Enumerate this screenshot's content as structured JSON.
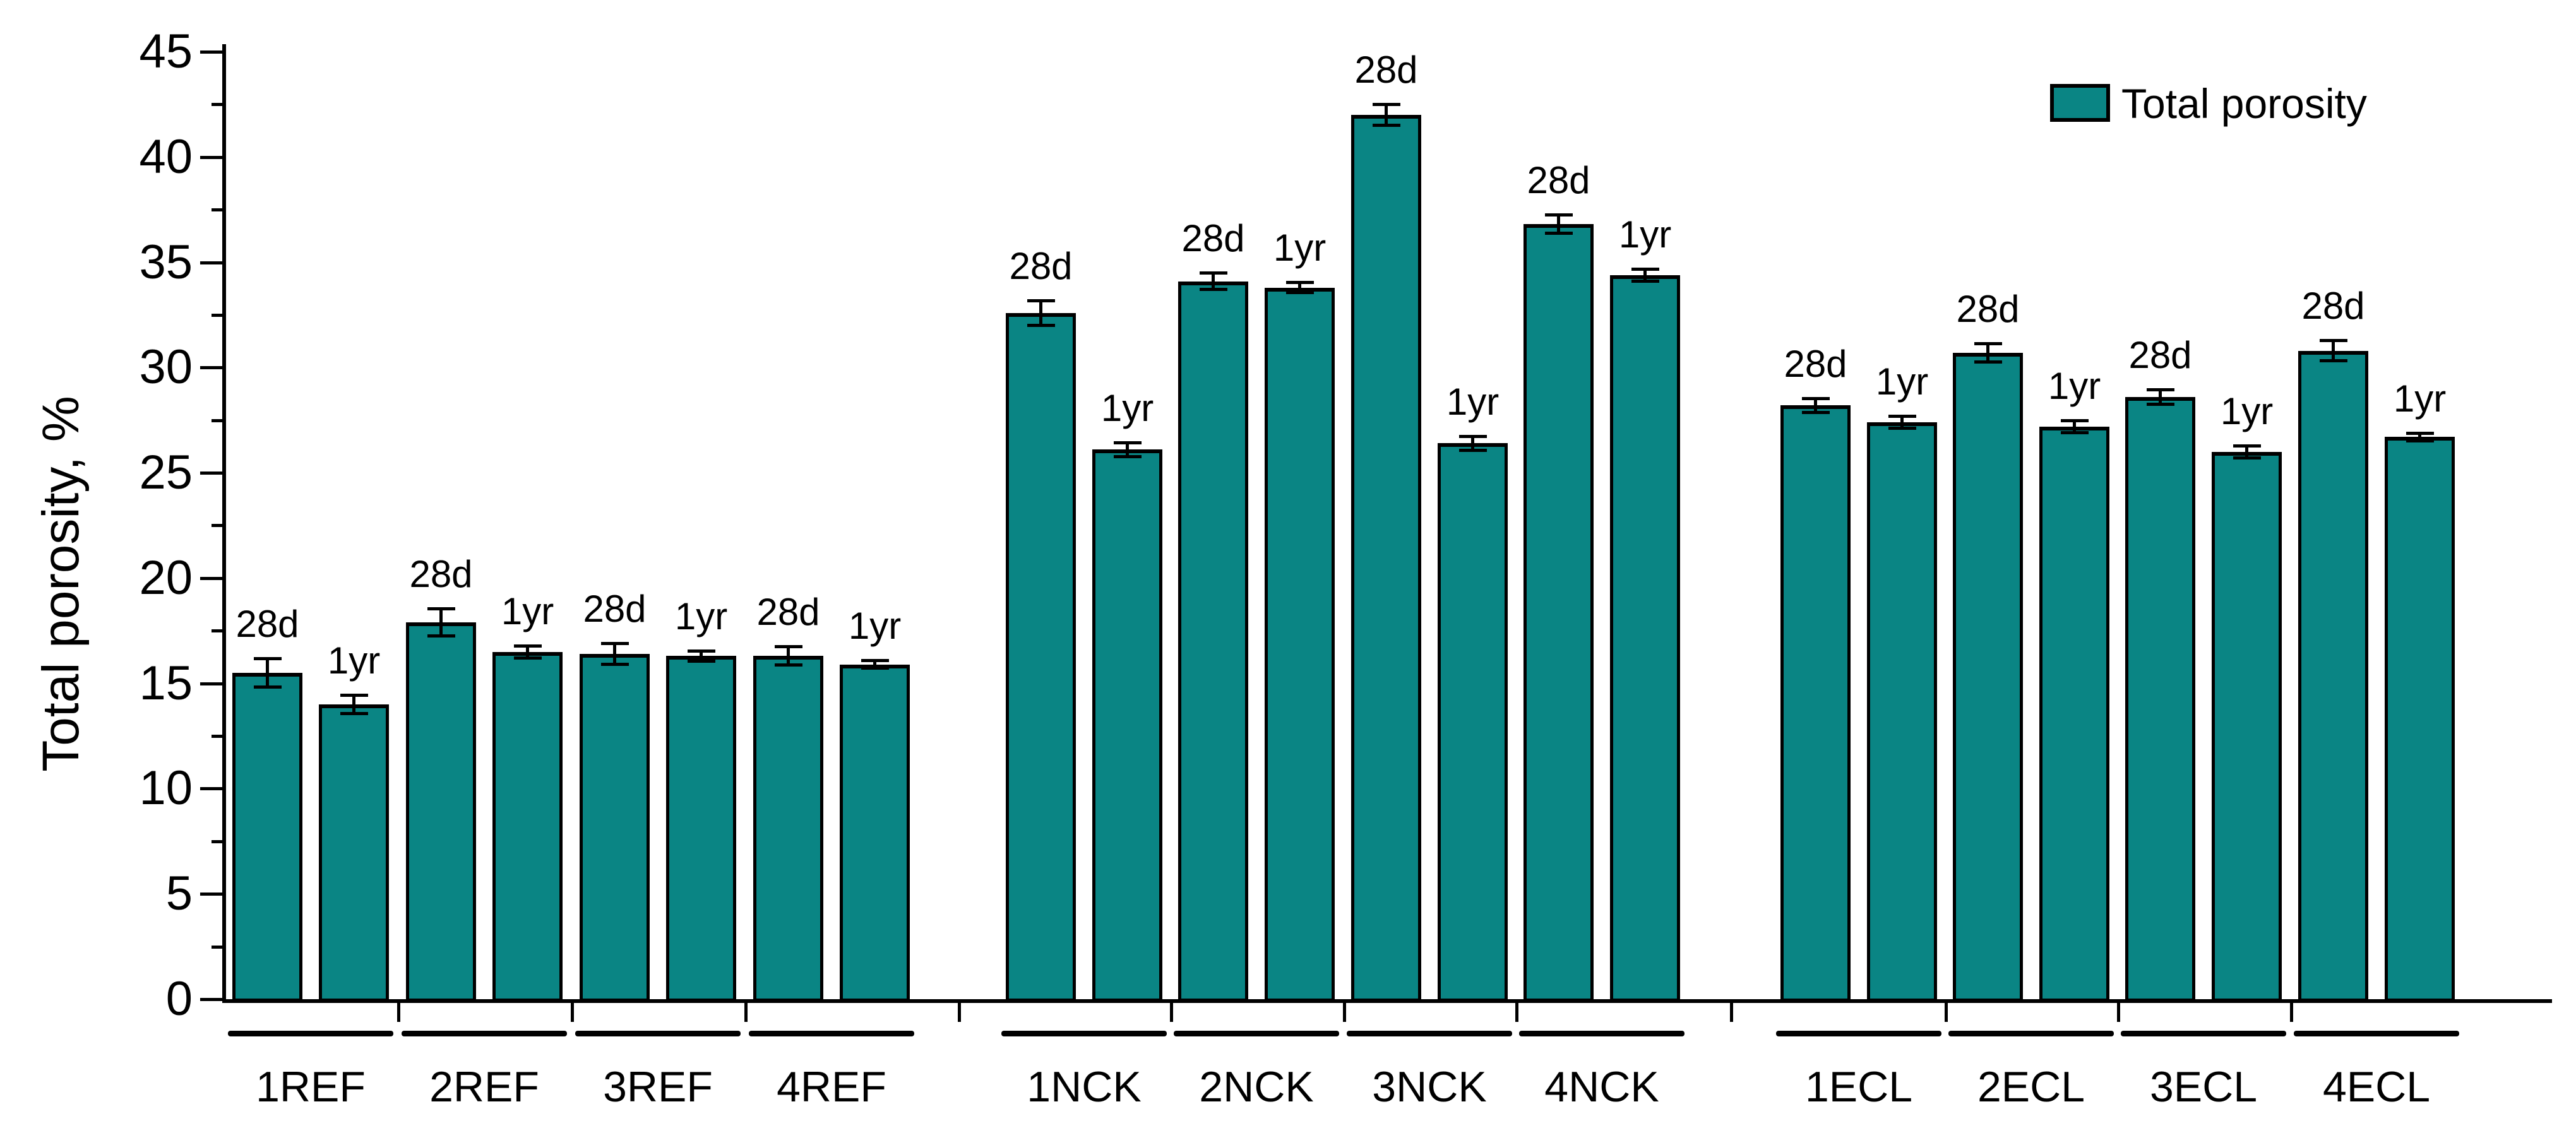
{
  "figure": {
    "background": "#ffffff",
    "text_color": "#000000"
  },
  "chart_data": {
    "type": "bar",
    "title": "",
    "xlabel": "",
    "ylabel": "Total porosity, %",
    "ylim": [
      0,
      45
    ],
    "ytick_step": 5,
    "ytick_minor_step": 2.5,
    "yticklabels": [
      "0",
      "5",
      "10",
      "15",
      "20",
      "25",
      "30",
      "35",
      "40",
      "45"
    ],
    "grid": false,
    "legend": {
      "position": "top-right",
      "entries": [
        {
          "label": "Total porosity",
          "color": "#0a8584"
        }
      ]
    },
    "bar_color": "#0a8584",
    "bar_edge_color": "#000000",
    "error_bar_color": "#000000",
    "categories": [
      "1REF",
      "2REF",
      "3REF",
      "4REF",
      "1NCK",
      "2NCK",
      "3NCK",
      "4NCK",
      "1ECL",
      "2ECL",
      "3ECL",
      "4ECL"
    ],
    "sections": [
      {
        "name": "REF",
        "groups": [
          "1REF",
          "2REF",
          "3REF",
          "4REF"
        ]
      },
      {
        "name": "NCK",
        "groups": [
          "1NCK",
          "2NCK",
          "3NCK",
          "4NCK"
        ]
      },
      {
        "name": "ECL",
        "groups": [
          "1ECL",
          "2ECL",
          "3ECL",
          "4ECL"
        ]
      }
    ],
    "groups": [
      {
        "label": "1REF",
        "bars": [
          {
            "label": "28d",
            "value": 15.5,
            "error": 0.7
          },
          {
            "label": "1yr",
            "value": 14.0,
            "error": 0.45
          }
        ]
      },
      {
        "label": "2REF",
        "bars": [
          {
            "label": "28d",
            "value": 17.9,
            "error": 0.65
          },
          {
            "label": "1yr",
            "value": 16.5,
            "error": 0.3
          }
        ]
      },
      {
        "label": "3REF",
        "bars": [
          {
            "label": "28d",
            "value": 16.4,
            "error": 0.5
          },
          {
            "label": "1yr",
            "value": 16.3,
            "error": 0.25
          }
        ]
      },
      {
        "label": "4REF",
        "bars": [
          {
            "label": "28d",
            "value": 16.3,
            "error": 0.45
          },
          {
            "label": "1yr",
            "value": 15.9,
            "error": 0.2
          }
        ]
      },
      {
        "label": "1NCK",
        "bars": [
          {
            "label": "28d",
            "value": 32.6,
            "error": 0.6
          },
          {
            "label": "1yr",
            "value": 26.1,
            "error": 0.35
          }
        ]
      },
      {
        "label": "2NCK",
        "bars": [
          {
            "label": "28d",
            "value": 34.1,
            "error": 0.4
          },
          {
            "label": "1yr",
            "value": 33.8,
            "error": 0.25
          }
        ]
      },
      {
        "label": "3NCK",
        "bars": [
          {
            "label": "28d",
            "value": 42.0,
            "error": 0.5
          },
          {
            "label": "1yr",
            "value": 26.4,
            "error": 0.35
          }
        ]
      },
      {
        "label": "4NCK",
        "bars": [
          {
            "label": "28d",
            "value": 36.8,
            "error": 0.45
          },
          {
            "label": "1yr",
            "value": 34.4,
            "error": 0.3
          }
        ]
      },
      {
        "label": "1ECL",
        "bars": [
          {
            "label": "28d",
            "value": 28.2,
            "error": 0.35
          },
          {
            "label": "1yr",
            "value": 27.4,
            "error": 0.3
          }
        ]
      },
      {
        "label": "2ECL",
        "bars": [
          {
            "label": "28d",
            "value": 30.7,
            "error": 0.45
          },
          {
            "label": "1yr",
            "value": 27.2,
            "error": 0.3
          }
        ]
      },
      {
        "label": "3ECL",
        "bars": [
          {
            "label": "28d",
            "value": 28.6,
            "error": 0.35
          },
          {
            "label": "1yr",
            "value": 26.0,
            "error": 0.3
          }
        ]
      },
      {
        "label": "4ECL",
        "bars": [
          {
            "label": "28d",
            "value": 30.8,
            "error": 0.5
          },
          {
            "label": "1yr",
            "value": 26.7,
            "error": 0.2
          }
        ]
      }
    ]
  }
}
